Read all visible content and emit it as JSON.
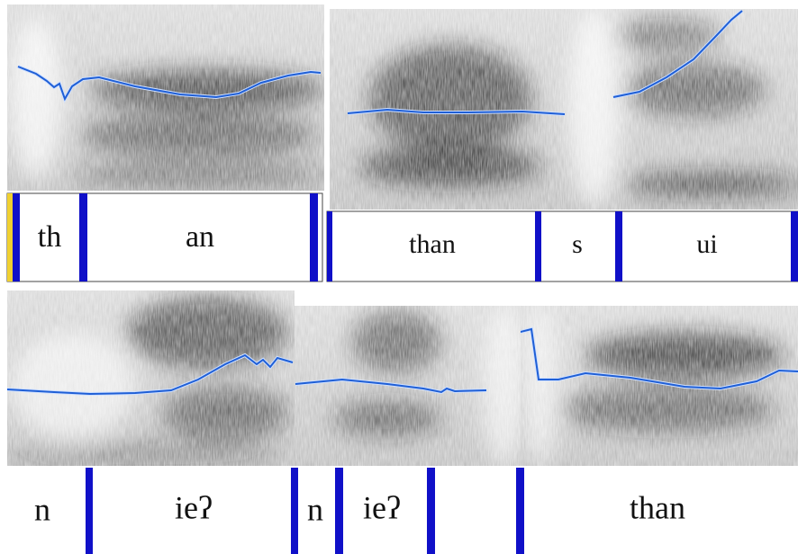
{
  "rows": [
    {
      "segments": [
        "th",
        "an",
        "than",
        "s",
        "ui"
      ]
    },
    {
      "segments": [
        "n",
        "ieʔ",
        "n",
        "ieʔ",
        "than"
      ]
    }
  ]
}
